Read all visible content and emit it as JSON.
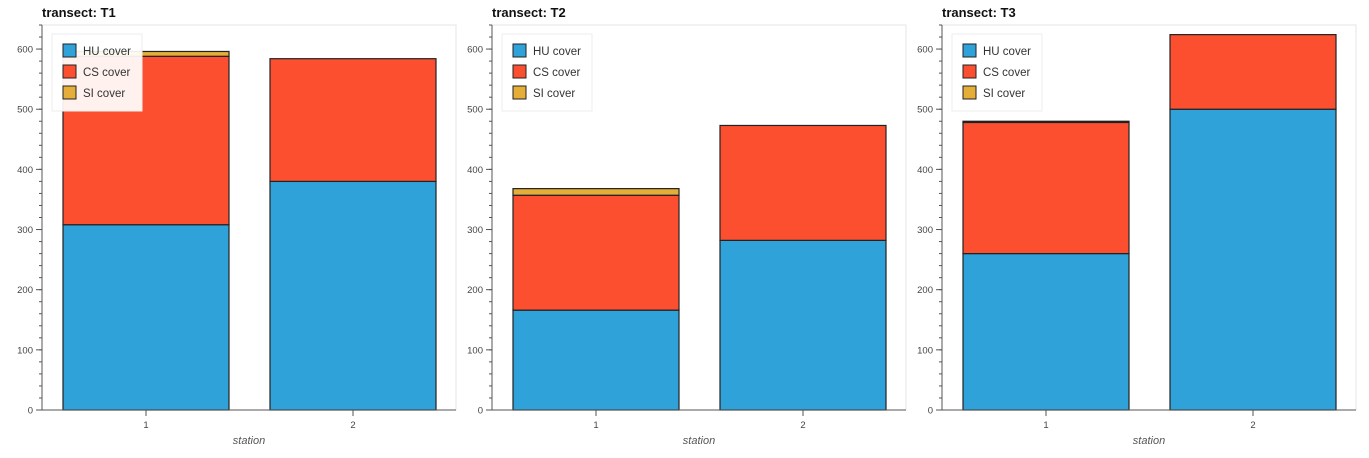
{
  "colors": {
    "HU cover": "#30a2da",
    "CS cover": "#fc4f30",
    "SI cover": "#e5ae38",
    "axis": "#555555",
    "frame": "#e5e5e5",
    "bar_stroke": "#222222"
  },
  "chart_data": [
    {
      "type": "bar",
      "stacked": true,
      "title": "transect: T1",
      "xlabel": "station",
      "ylabel": "",
      "categories": [
        "1",
        "2"
      ],
      "ylim": [
        0,
        640
      ],
      "yticks": [
        0,
        100,
        200,
        300,
        400,
        500,
        600
      ],
      "legend": "top-left",
      "series": [
        {
          "name": "HU cover",
          "values": [
            308,
            380
          ]
        },
        {
          "name": "CS cover",
          "values": [
            280,
            204
          ]
        },
        {
          "name": "SI cover",
          "values": [
            8,
            0
          ]
        }
      ]
    },
    {
      "type": "bar",
      "stacked": true,
      "title": "transect: T2",
      "xlabel": "station",
      "ylabel": "",
      "categories": [
        "1",
        "2"
      ],
      "ylim": [
        0,
        640
      ],
      "yticks": [
        0,
        100,
        200,
        300,
        400,
        500,
        600
      ],
      "legend": "top-left",
      "series": [
        {
          "name": "HU cover",
          "values": [
            166,
            282
          ]
        },
        {
          "name": "CS cover",
          "values": [
            191,
            191
          ]
        },
        {
          "name": "SI cover",
          "values": [
            11,
            0
          ]
        }
      ]
    },
    {
      "type": "bar",
      "stacked": true,
      "title": "transect: T3",
      "xlabel": "station",
      "ylabel": "",
      "categories": [
        "1",
        "2"
      ],
      "ylim": [
        0,
        640
      ],
      "yticks": [
        0,
        100,
        200,
        300,
        400,
        500,
        600
      ],
      "legend": "top-left",
      "series": [
        {
          "name": "HU cover",
          "values": [
            260,
            500
          ]
        },
        {
          "name": "CS cover",
          "values": [
            218,
            124
          ]
        },
        {
          "name": "SI cover",
          "values": [
            2,
            0
          ]
        }
      ]
    }
  ]
}
